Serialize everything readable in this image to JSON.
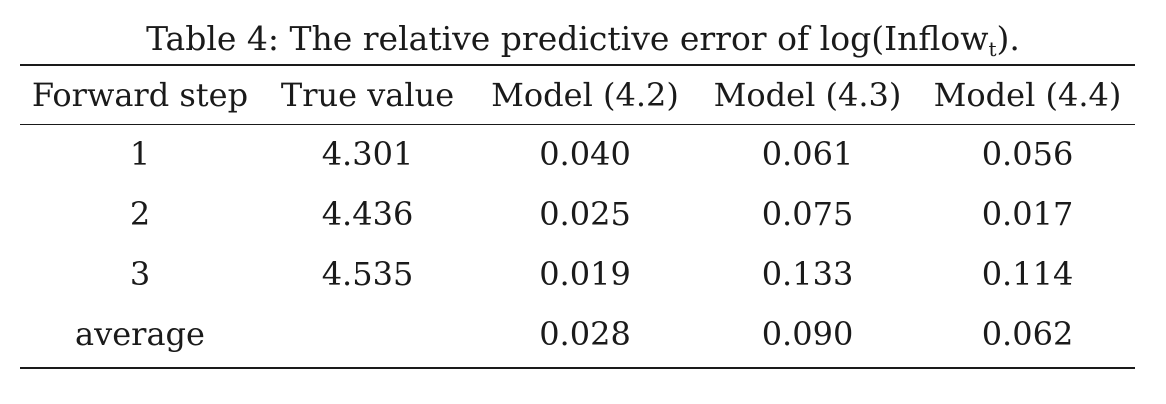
{
  "caption": {
    "prefix": "Table 4: The relative predictive error of log(Inflow",
    "subscript": "t",
    "suffix": ")."
  },
  "table": {
    "headers": [
      "Forward step",
      "True value",
      "Model (4.2)",
      "Model (4.3)",
      "Model (4.4)"
    ],
    "rows": [
      [
        "1",
        "4.301",
        "0.040",
        "0.061",
        "0.056"
      ],
      [
        "2",
        "4.436",
        "0.025",
        "0.075",
        "0.017"
      ],
      [
        "3",
        "4.535",
        "0.019",
        "0.133",
        "0.114"
      ],
      [
        "average",
        "",
        "0.028",
        "0.090",
        "0.062"
      ]
    ]
  }
}
